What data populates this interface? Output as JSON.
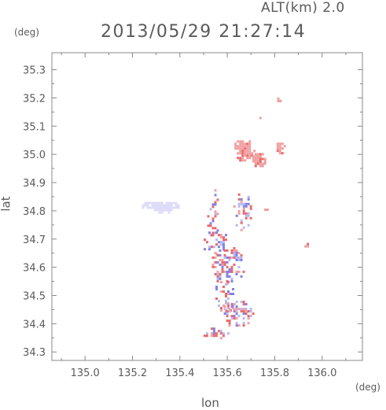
{
  "header": {
    "altitude_label": "ALT(km) 2.0",
    "datetime": "2013/05/29 21:27:14"
  },
  "chart_data": {
    "type": "heatmap",
    "title": "2013/05/29 21:27:14",
    "subtitle": "ALT(km) 2.0",
    "xlabel": "lon",
    "ylabel": "lat",
    "x_unit": "(deg)",
    "y_unit": "(deg)",
    "xlim": [
      134.86,
      136.17
    ],
    "ylim": [
      34.27,
      35.36
    ],
    "x_ticks": [
      135.0,
      135.2,
      135.4,
      135.6,
      135.8,
      136.0
    ],
    "x_tick_labels": [
      "135.0",
      "135.2",
      "135.4",
      "135.6",
      "135.8",
      "136.0"
    ],
    "y_ticks": [
      34.3,
      34.4,
      34.5,
      34.6,
      34.7,
      34.8,
      34.9,
      35.0,
      35.1,
      35.2,
      35.3
    ],
    "y_tick_labels": [
      "34.3",
      "34.4",
      "34.5",
      "34.6",
      "34.7",
      "34.8",
      "34.9",
      "35.0",
      "35.1",
      "35.2",
      "35.3"
    ],
    "grid": false,
    "colors": {
      "positive": "#f0a0a0",
      "positive_strong": "#e86a6a",
      "negative": "#b8b8f4",
      "negative_strong": "#8080e8",
      "faint": "#dcdcf8",
      "axis": "#888888"
    },
    "clusters": [
      {
        "lon": 135.81,
        "lat": 35.193,
        "rx": 0.008,
        "ry": 0.006,
        "polarity": "positive",
        "density": 0.9
      },
      {
        "lon": 135.735,
        "lat": 35.133,
        "rx": 0.01,
        "ry": 0.006,
        "polarity": "positive",
        "density": 0.9
      },
      {
        "lon": 135.665,
        "lat": 35.018,
        "rx": 0.045,
        "ry": 0.04,
        "polarity": "positive",
        "density": 0.85
      },
      {
        "lon": 135.73,
        "lat": 34.985,
        "rx": 0.035,
        "ry": 0.028,
        "polarity": "positive",
        "density": 0.85
      },
      {
        "lon": 135.82,
        "lat": 35.028,
        "rx": 0.022,
        "ry": 0.022,
        "polarity": "positive",
        "density": 0.8
      },
      {
        "lon": 135.935,
        "lat": 34.678,
        "rx": 0.006,
        "ry": 0.006,
        "polarity": "positive",
        "density": 1.0
      },
      {
        "lon": 135.755,
        "lat": 34.808,
        "rx": 0.007,
        "ry": 0.008,
        "polarity": "positive",
        "density": 0.8
      },
      {
        "lon": 135.315,
        "lat": 34.818,
        "rx": 0.085,
        "ry": 0.022,
        "polarity": "faint",
        "density": 0.9
      },
      {
        "lon": 135.535,
        "lat": 34.795,
        "rx": 0.03,
        "ry": 0.09,
        "polarity": "mixed",
        "density": 0.25
      },
      {
        "lon": 135.66,
        "lat": 34.8,
        "rx": 0.045,
        "ry": 0.07,
        "polarity": "mixed",
        "density": 0.35
      },
      {
        "lon": 135.55,
        "lat": 34.69,
        "rx": 0.06,
        "ry": 0.045,
        "polarity": "mixed",
        "density": 0.45
      },
      {
        "lon": 135.6,
        "lat": 34.61,
        "rx": 0.075,
        "ry": 0.07,
        "polarity": "mixed",
        "density": 0.45
      },
      {
        "lon": 135.59,
        "lat": 34.5,
        "rx": 0.05,
        "ry": 0.06,
        "polarity": "mixed",
        "density": 0.4
      },
      {
        "lon": 135.64,
        "lat": 34.44,
        "rx": 0.065,
        "ry": 0.05,
        "polarity": "mixed",
        "density": 0.45
      },
      {
        "lon": 135.54,
        "lat": 34.37,
        "rx": 0.06,
        "ry": 0.025,
        "polarity": "mixed",
        "density": 0.45
      }
    ]
  }
}
